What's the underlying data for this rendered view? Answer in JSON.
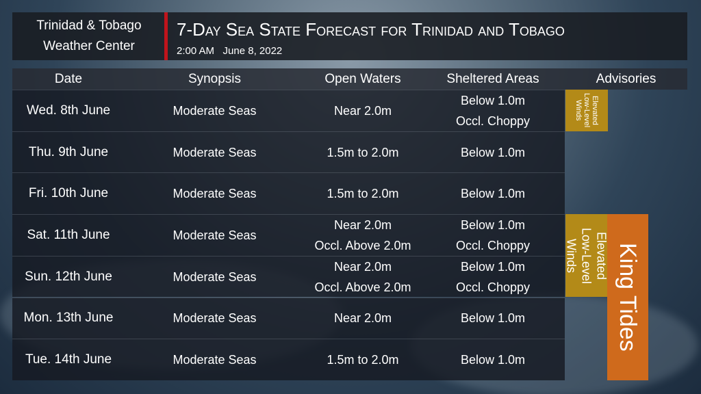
{
  "header": {
    "organization": [
      "Trinidad & Tobago",
      "Weather Center"
    ],
    "title": "7-Day Sea State Forecast for Trinidad and Tobago",
    "subtitle": "2:00 AM   June 8, 2022"
  },
  "table": {
    "columns": [
      "Date",
      "Synopsis",
      "Open Waters",
      "Sheltered Areas",
      "Advisories"
    ],
    "rows": [
      {
        "date": "Wed. 8th June",
        "synopsis": "Moderate Seas",
        "open_waters": [
          "Near 2.0m"
        ],
        "sheltered_areas": [
          "Below 1.0m",
          "Occl. Choppy"
        ]
      },
      {
        "date": "Thu. 9th June",
        "synopsis": "Moderate Seas",
        "open_waters": [
          "1.5m to 2.0m"
        ],
        "sheltered_areas": [
          "Below 1.0m"
        ]
      },
      {
        "date": "Fri. 10th June",
        "synopsis": "Moderate Seas",
        "open_waters": [
          "1.5m to 2.0m"
        ],
        "sheltered_areas": [
          "Below 1.0m"
        ]
      },
      {
        "date": "Sat. 11th June",
        "synopsis": "Moderate Seas",
        "open_waters": [
          "Near 2.0m",
          "Occl. Above 2.0m"
        ],
        "sheltered_areas": [
          "Below 1.0m",
          "Occl. Choppy"
        ]
      },
      {
        "date": "Sun. 12th June",
        "synopsis": "Moderate Seas",
        "open_waters": [
          "Near 2.0m",
          "Occl. Above 2.0m"
        ],
        "sheltered_areas": [
          "Below 1.0m",
          "Occl. Choppy"
        ]
      },
      {
        "date": "Mon. 13th June",
        "synopsis": "Moderate Seas",
        "open_waters": [
          "Near 2.0m"
        ],
        "sheltered_areas": [
          "Below 1.0m"
        ]
      },
      {
        "date": "Tue. 14th June",
        "synopsis": "Moderate Seas",
        "open_waters": [
          "1.5m to 2.0m"
        ],
        "sheltered_areas": [
          "Below 1.0m"
        ]
      }
    ]
  },
  "advisories": [
    {
      "label": "Elevated Low-Level Winds",
      "color": "#b38a18"
    },
    {
      "label": "Elevated Low-Level Winds",
      "color": "#b38a18"
    },
    {
      "label": "King Tides",
      "color": "#cf6a1c"
    }
  ]
}
